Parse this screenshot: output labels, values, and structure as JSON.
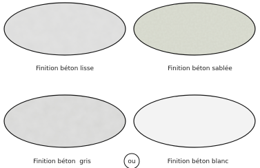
{
  "items": [
    {
      "label": "Finition béton lisse"
    },
    {
      "label": "Finition béton sablée"
    },
    {
      "label": "Finition béton  gris"
    },
    {
      "label": "Finition béton blanc"
    }
  ],
  "separator": "ou"
}
